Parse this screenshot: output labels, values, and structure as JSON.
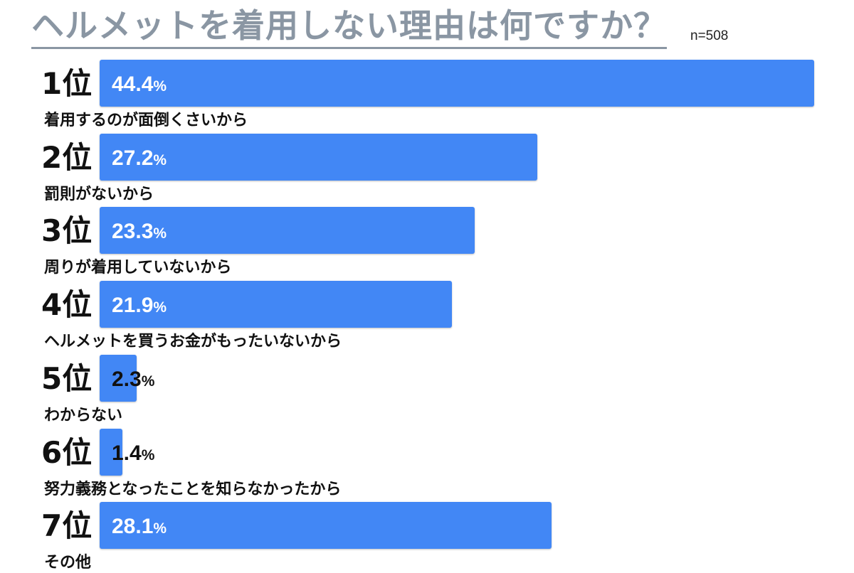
{
  "header": {
    "title": "ヘルメットを着用しない理由は何ですか？",
    "sample": "n=508"
  },
  "colors": {
    "bar": "#4287f5",
    "title": "#8a96a3"
  },
  "chart_data": {
    "type": "bar",
    "orientation": "horizontal",
    "title": "ヘルメットを着用しない理由は何ですか？",
    "unit": "%",
    "xlim": [
      0,
      44.4
    ],
    "ranks": [
      "1位",
      "2位",
      "3位",
      "4位",
      "5位",
      "6位",
      "7位"
    ],
    "categories": [
      "着用するのが面倒くさいから",
      "罰則がないから",
      "周りが着用していないから",
      "ヘルメットを買うお金がもったいないから",
      "わからない",
      "努力義務となったことを知らなかったから",
      "その他"
    ],
    "values": [
      44.4,
      27.2,
      23.3,
      21.9,
      2.3,
      1.4,
      28.1
    ]
  }
}
